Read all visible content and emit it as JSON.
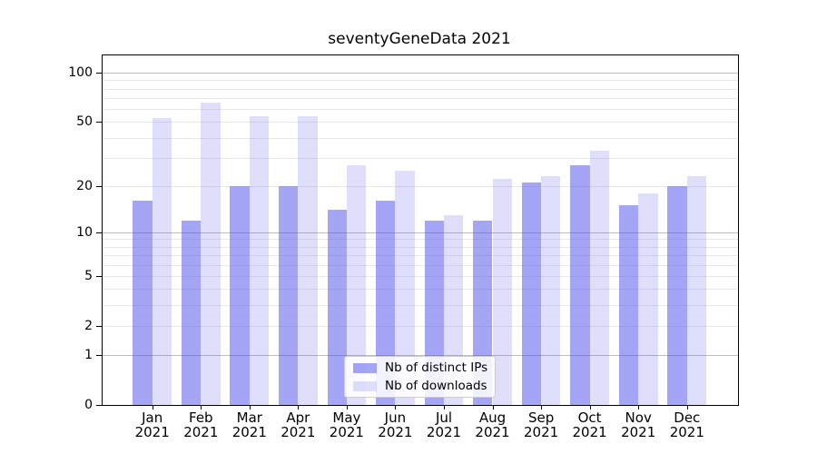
{
  "title": "seventyGeneData 2021",
  "chart_data": {
    "type": "bar",
    "title": "seventyGeneData 2021",
    "categories": [
      "Jan 2021",
      "Feb 2021",
      "Mar 2021",
      "Apr 2021",
      "May 2021",
      "Jun 2021",
      "Jul 2021",
      "Aug 2021",
      "Sep 2021",
      "Oct 2021",
      "Nov 2021",
      "Dec 2021"
    ],
    "series": [
      {
        "name": "Nb of distinct IPs",
        "values": [
          16,
          12,
          20,
          20,
          14,
          16,
          12,
          12,
          21,
          27,
          15,
          20
        ],
        "color": "#4b4beb",
        "alpha": 0.5
      },
      {
        "name": "Nb of downloads",
        "values": [
          53,
          66,
          54,
          54,
          27,
          25,
          13,
          22,
          23,
          33,
          18,
          23
        ],
        "color": "#4b4beb",
        "alpha": 0.18
      }
    ],
    "yscale": "log1p",
    "ylim": [
      0,
      127
    ],
    "y_major_ticks": [
      0,
      1,
      2,
      5,
      10,
      20,
      50,
      100
    ],
    "y_minor_gridlines": [
      3,
      4,
      6,
      7,
      8,
      9,
      30,
      40,
      60,
      70,
      80,
      90
    ],
    "y_decade_gridlines": [
      1,
      10,
      100
    ],
    "grid": true,
    "legend_position": "lower center"
  },
  "legend": {
    "items": [
      {
        "label": "Nb of distinct IPs"
      },
      {
        "label": "Nb of downloads"
      }
    ]
  },
  "colors": {
    "bar_base": "#4b4beb",
    "bar_distinct_ips_rendered": "#a5a5f5",
    "bar_downloads_rendered": "#dedefb",
    "grid_decade": "#bdbdbd",
    "grid_light": "#e9e9e9",
    "axis": "#000000",
    "text": "#000000",
    "legend_border": "#cccccc",
    "background": "#ffffff"
  }
}
